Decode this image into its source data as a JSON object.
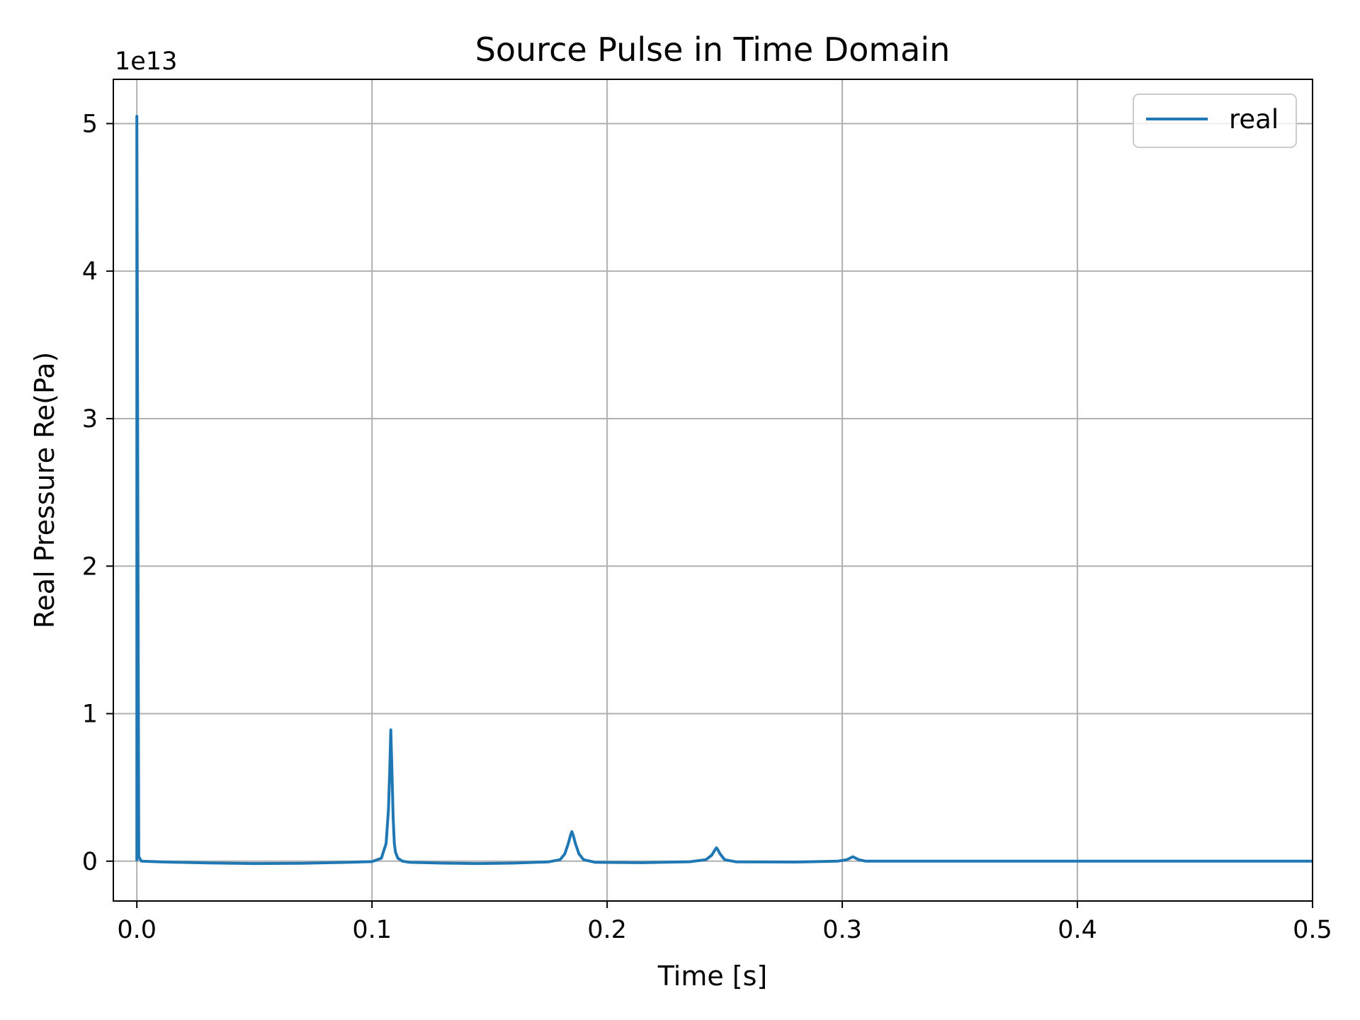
{
  "chart_data": {
    "type": "line",
    "title": "Source Pulse in Time Domain",
    "xlabel": "Time [s]",
    "ylabel": "Real Pressure Re(Pa)",
    "y_offset_label": "1e13",
    "xlim": [
      -0.01,
      0.5
    ],
    "ylim": [
      -0.27,
      5.3
    ],
    "xticks": [
      {
        "value": 0.0,
        "label": "0.0"
      },
      {
        "value": 0.1,
        "label": "0.1"
      },
      {
        "value": 0.2,
        "label": "0.2"
      },
      {
        "value": 0.3,
        "label": "0.3"
      },
      {
        "value": 0.4,
        "label": "0.4"
      },
      {
        "value": 0.5,
        "label": "0.5"
      }
    ],
    "yticks": [
      {
        "value": 0,
        "label": "0"
      },
      {
        "value": 1,
        "label": "1"
      },
      {
        "value": 2,
        "label": "2"
      },
      {
        "value": 3,
        "label": "3"
      },
      {
        "value": 4,
        "label": "4"
      },
      {
        "value": 5,
        "label": "5"
      }
    ],
    "grid": true,
    "legend_position": "top-right",
    "series": [
      {
        "name": "real",
        "color": "#1f77b4",
        "x": [
          0.0,
          0.0,
          0.0008,
          0.002,
          0.01,
          0.03,
          0.05,
          0.07,
          0.09,
          0.1,
          0.104,
          0.106,
          0.107,
          0.1075,
          0.108,
          0.1085,
          0.109,
          0.1095,
          0.11,
          0.111,
          0.113,
          0.116,
          0.13,
          0.145,
          0.16,
          0.175,
          0.18,
          0.182,
          0.1835,
          0.1845,
          0.185,
          0.1855,
          0.1865,
          0.188,
          0.19,
          0.195,
          0.215,
          0.235,
          0.242,
          0.2445,
          0.246,
          0.2465,
          0.247,
          0.248,
          0.25,
          0.255,
          0.28,
          0.298,
          0.302,
          0.3045,
          0.307,
          0.31,
          0.35,
          0.4,
          0.45,
          0.5
        ],
        "values": [
          0.0,
          5.05,
          0.03,
          0.0,
          -0.005,
          -0.012,
          -0.016,
          -0.014,
          -0.008,
          -0.003,
          0.02,
          0.12,
          0.35,
          0.6,
          0.89,
          0.6,
          0.3,
          0.12,
          0.06,
          0.02,
          0.0,
          -0.008,
          -0.013,
          -0.016,
          -0.013,
          -0.005,
          0.01,
          0.05,
          0.12,
          0.18,
          0.2,
          0.18,
          0.12,
          0.05,
          0.01,
          -0.008,
          -0.01,
          -0.004,
          0.01,
          0.04,
          0.08,
          0.09,
          0.08,
          0.05,
          0.01,
          -0.005,
          -0.006,
          0.0,
          0.01,
          0.03,
          0.01,
          0.0,
          0.0,
          0.0,
          0.0,
          0.0
        ]
      }
    ]
  }
}
